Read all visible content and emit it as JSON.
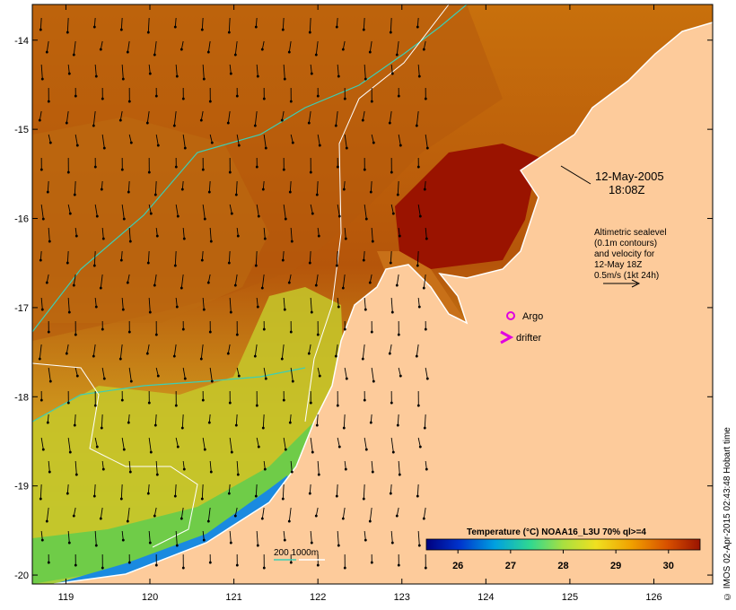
{
  "map": {
    "lon_ticks": [
      119,
      120,
      121,
      122,
      123,
      124,
      125,
      126
    ],
    "lat_ticks": [
      -14,
      -15,
      -16,
      -17,
      -18,
      -19,
      -20
    ],
    "lon_range": [
      118.6,
      126.7
    ],
    "lat_range": [
      -20.1,
      -13.6
    ],
    "colors": {
      "land": "#fdcb9b",
      "sea_warm": "#b5550a",
      "sea_hot": "#9a1300",
      "coast_cool": "#7fd04a",
      "contour_200": "#3ccfb5",
      "contour_1000": "#ffffff",
      "argo_marker": "#e000e0",
      "drifter_marker": "#e000e0"
    }
  },
  "annotations": {
    "date_line1": "12-May-2005",
    "date_line2": "18:08Z",
    "info_lines": [
      "Altimetric sealevel",
      "(0.1m contours)",
      "and velocity for",
      "12-May 18Z",
      "0.5m/s (1kt 24h)"
    ],
    "argo_label": "Argo",
    "drifter_label": "drifter",
    "contour_legend": "200  1000m"
  },
  "colorbar": {
    "title": "Temperature (°C) NOAA16_L3U 70% ql>=4",
    "ticks": [
      26,
      27,
      28,
      29,
      30
    ],
    "range": [
      25.4,
      30.6
    ],
    "stops": [
      "#00007f",
      "#0033cc",
      "#00a0e0",
      "#30d890",
      "#a8e040",
      "#f0e020",
      "#f0a000",
      "#d85000",
      "#9a1300"
    ]
  },
  "credit": "© IMOS 02-Apr-2015 02:43:48 Hobart time"
}
